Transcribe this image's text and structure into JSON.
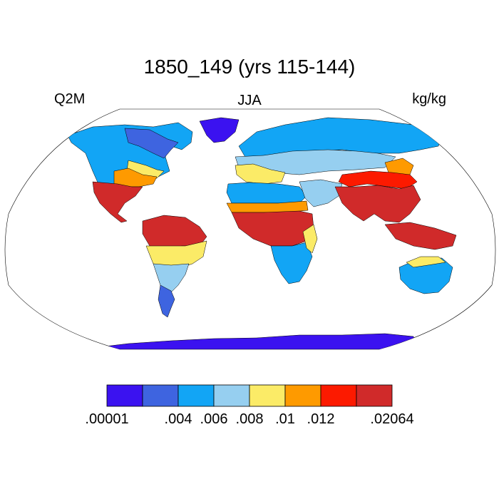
{
  "title": "1850_149 (yrs 115-144)",
  "left_label": "Q2M",
  "center_label": "JJA",
  "right_label": "kg/kg",
  "colorbar": {
    "colors": [
      "#3b12f0",
      "#3e64e0",
      "#12a5f5",
      "#96cff0",
      "#fbeb67",
      "#fe9a00",
      "#fc1a00",
      "#d02a2a"
    ],
    "tick_labels": [
      ".00001",
      ".004",
      ".006",
      ".008",
      ".01",
      ".012",
      ".02064"
    ]
  }
}
